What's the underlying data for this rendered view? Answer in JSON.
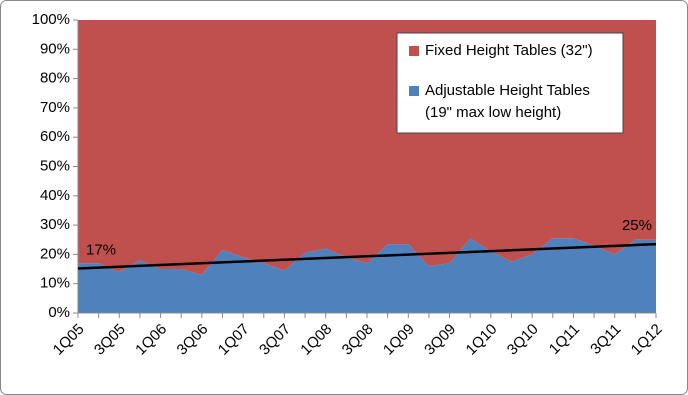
{
  "chart_data": {
    "type": "stacked-area",
    "categories": [
      "1Q05",
      null,
      "3Q05",
      null,
      "1Q06",
      null,
      "3Q06",
      null,
      "1Q07",
      null,
      "3Q07",
      null,
      "1Q08",
      null,
      "3Q08",
      null,
      "1Q09",
      null,
      "3Q09",
      null,
      "1Q10",
      null,
      "3Q10",
      null,
      "1Q11",
      null,
      "3Q11",
      null,
      "1Q12"
    ],
    "series": [
      {
        "name": "Adjustable Height Tables\n(19\" max low height)",
        "color": "#4f81bd",
        "values": [
          17,
          17,
          14,
          18,
          15,
          15,
          13,
          21.5,
          19,
          17,
          14.5,
          20.5,
          22,
          19,
          17,
          23.5,
          23.5,
          16,
          17,
          25.5,
          21,
          17.5,
          20,
          25.5,
          25.5,
          23,
          20,
          25,
          25
        ]
      },
      {
        "name": "Fixed Height Tables (32\")",
        "color": "#c0504d",
        "values": [
          83,
          83,
          86,
          82,
          85,
          85,
          87,
          78.5,
          81,
          83,
          85.5,
          79.5,
          78,
          81,
          83,
          76.5,
          76.5,
          84,
          83,
          74.5,
          79,
          82.5,
          80,
          74.5,
          74.5,
          77,
          80,
          75,
          75
        ]
      }
    ],
    "trendline": {
      "color": "#000000",
      "values": [
        15.2,
        23.5
      ]
    },
    "annotations": [
      {
        "text": "17%"
      },
      {
        "text": "25%"
      }
    ],
    "ylim": [
      0,
      100
    ],
    "yticks": [
      {
        "value": 0,
        "label": "0%"
      },
      {
        "value": 10,
        "label": "10%"
      },
      {
        "value": 20,
        "label": "20%"
      },
      {
        "value": 30,
        "label": "30%"
      },
      {
        "value": 40,
        "label": "40%"
      },
      {
        "value": 50,
        "label": "50%"
      },
      {
        "value": 60,
        "label": "60%"
      },
      {
        "value": 70,
        "label": "70%"
      },
      {
        "value": 80,
        "label": "80%"
      },
      {
        "value": 90,
        "label": "90%"
      },
      {
        "value": 100,
        "label": "100%"
      }
    ],
    "legend": "top-right"
  }
}
